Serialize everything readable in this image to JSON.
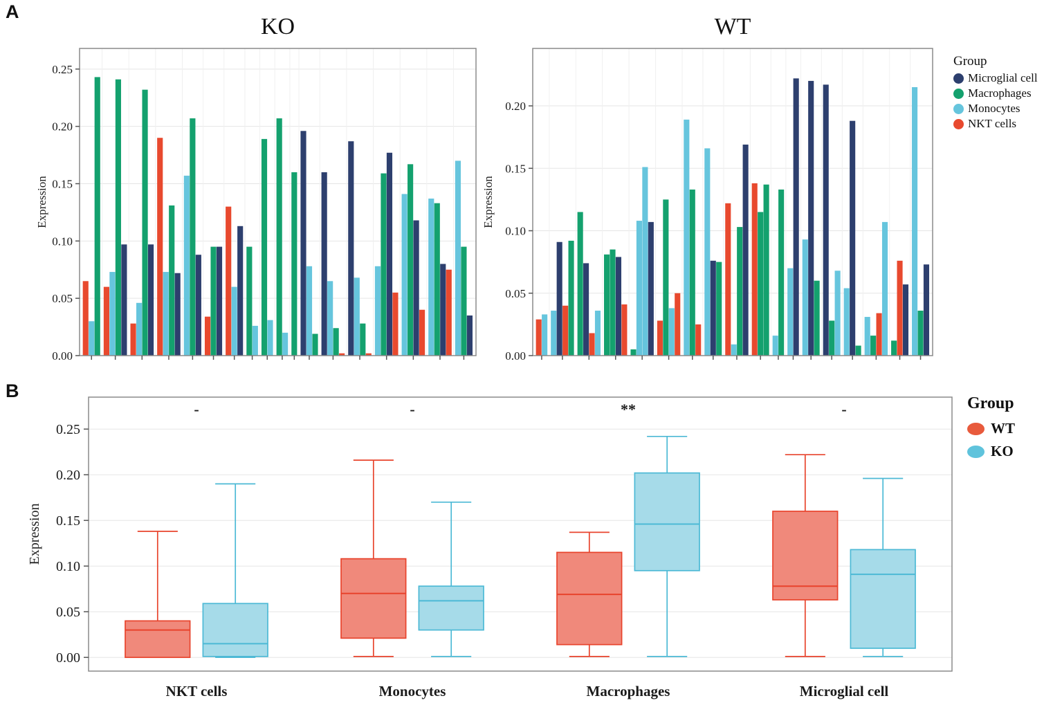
{
  "panel_a": {
    "label": "A",
    "ko_title": "KO",
    "wt_title": "WT",
    "legend": {
      "title": "Group",
      "items": [
        {
          "label": "Microglial cell",
          "color": "#2d3f6e"
        },
        {
          "label": "Macrophages",
          "color": "#14a16e"
        },
        {
          "label": "Monocytes",
          "color": "#66c5dd"
        },
        {
          "label": "NKT cells",
          "color": "#e8492e"
        }
      ]
    }
  },
  "panel_b": {
    "label": "B",
    "legend": {
      "title": "Group",
      "items": [
        {
          "label": "WT",
          "color": "#e85a3c"
        },
        {
          "label": "KO",
          "color": "#5fc3dc"
        }
      ]
    }
  },
  "chart_data": [
    {
      "type": "bar",
      "title": "KO",
      "ylabel": "Expression",
      "ylim": [
        0,
        0.268
      ],
      "yticks": [
        0,
        0.05,
        0.1,
        0.15,
        0.2,
        0.25
      ],
      "grid": true,
      "legend_position": "right",
      "colors": {
        "microglial": "#2d3f6e",
        "macrophage": "#14a16e",
        "monocyte": "#66c5dd",
        "nkt": "#e8492e"
      },
      "clusters": [
        [
          {
            "g": "nkt",
            "v": 0.065
          },
          {
            "g": "monocyte",
            "v": 0.03
          },
          {
            "g": "macrophage",
            "v": 0.243
          }
        ],
        [
          {
            "g": "nkt",
            "v": 0.06
          },
          {
            "g": "monocyte",
            "v": 0.073
          },
          {
            "g": "macrophage",
            "v": 0.241
          },
          {
            "g": "microglial",
            "v": 0.097
          }
        ],
        [
          {
            "g": "nkt",
            "v": 0.028
          },
          {
            "g": "monocyte",
            "v": 0.046
          },
          {
            "g": "macrophage",
            "v": 0.232
          },
          {
            "g": "microglial",
            "v": 0.097
          }
        ],
        [
          {
            "g": "nkt",
            "v": 0.19
          },
          {
            "g": "monocyte",
            "v": 0.073
          },
          {
            "g": "macrophage",
            "v": 0.131
          },
          {
            "g": "microglial",
            "v": 0.072
          }
        ],
        [
          {
            "g": "monocyte",
            "v": 0.157
          },
          {
            "g": "macrophage",
            "v": 0.207
          },
          {
            "g": "microglial",
            "v": 0.088
          }
        ],
        [
          {
            "g": "nkt",
            "v": 0.034
          },
          {
            "g": "macrophage",
            "v": 0.095
          },
          {
            "g": "microglial",
            "v": 0.095
          }
        ],
        [
          {
            "g": "nkt",
            "v": 0.13
          },
          {
            "g": "monocyte",
            "v": 0.06
          },
          {
            "g": "microglial",
            "v": 0.113
          }
        ],
        [
          {
            "g": "macrophage",
            "v": 0.095
          },
          {
            "g": "monocyte",
            "v": 0.026
          }
        ],
        [
          {
            "g": "macrophage",
            "v": 0.189
          },
          {
            "g": "monocyte",
            "v": 0.031
          }
        ],
        [
          {
            "g": "macrophage",
            "v": 0.207
          },
          {
            "g": "monocyte",
            "v": 0.02
          }
        ],
        [
          {
            "g": "macrophage",
            "v": 0.16
          }
        ],
        [
          {
            "g": "microglial",
            "v": 0.196
          },
          {
            "g": "monocyte",
            "v": 0.078
          },
          {
            "g": "macrophage",
            "v": 0.019
          }
        ],
        [
          {
            "g": "microglial",
            "v": 0.16
          },
          {
            "g": "monocyte",
            "v": 0.065
          },
          {
            "g": "macrophage",
            "v": 0.024
          },
          {
            "g": "nkt",
            "v": 0.002
          }
        ],
        [
          {
            "g": "microglial",
            "v": 0.187
          },
          {
            "g": "monocyte",
            "v": 0.068
          },
          {
            "g": "macrophage",
            "v": 0.028
          },
          {
            "g": "nkt",
            "v": 0.002
          }
        ],
        [
          {
            "g": "monocyte",
            "v": 0.078
          },
          {
            "g": "macrophage",
            "v": 0.159
          },
          {
            "g": "microglial",
            "v": 0.177
          },
          {
            "g": "nkt",
            "v": 0.055
          }
        ],
        [
          {
            "g": "monocyte",
            "v": 0.141
          },
          {
            "g": "macrophage",
            "v": 0.167
          },
          {
            "g": "microglial",
            "v": 0.118
          },
          {
            "g": "nkt",
            "v": 0.04
          }
        ],
        [
          {
            "g": "monocyte",
            "v": 0.137
          },
          {
            "g": "macrophage",
            "v": 0.133
          },
          {
            "g": "microglial",
            "v": 0.08
          },
          {
            "g": "nkt",
            "v": 0.075
          }
        ],
        [
          {
            "g": "monocyte",
            "v": 0.17
          },
          {
            "g": "macrophage",
            "v": 0.095
          },
          {
            "g": "microglial",
            "v": 0.035
          }
        ]
      ]
    },
    {
      "type": "bar",
      "title": "WT",
      "ylabel": "Expression",
      "ylim": [
        0,
        0.246
      ],
      "yticks": [
        0,
        0.05,
        0.1,
        0.15,
        0.2
      ],
      "grid": true,
      "legend_position": "right",
      "colors": {
        "microglial": "#2d3f6e",
        "macrophage": "#14a16e",
        "monocyte": "#66c5dd",
        "nkt": "#e8492e"
      },
      "clusters": [
        [
          {
            "g": "nkt",
            "v": 0.029
          },
          {
            "g": "monocyte",
            "v": 0.033
          }
        ],
        [
          {
            "g": "monocyte",
            "v": 0.036
          },
          {
            "g": "microglial",
            "v": 0.091
          },
          {
            "g": "nkt",
            "v": 0.04
          },
          {
            "g": "macrophage",
            "v": 0.092
          }
        ],
        [
          {
            "g": "macrophage",
            "v": 0.115
          },
          {
            "g": "microglial",
            "v": 0.074
          },
          {
            "g": "nkt",
            "v": 0.018
          },
          {
            "g": "monocyte",
            "v": 0.036
          }
        ],
        [
          {
            "g": "macrophage",
            "v": 0.081
          },
          {
            "g": "macrophage",
            "v": 0.085
          },
          {
            "g": "microglial",
            "v": 0.079
          },
          {
            "g": "nkt",
            "v": 0.041
          }
        ],
        [
          {
            "g": "macrophage",
            "v": 0.005
          },
          {
            "g": "monocyte",
            "v": 0.108
          },
          {
            "g": "monocyte",
            "v": 0.151
          },
          {
            "g": "microglial",
            "v": 0.107
          }
        ],
        [
          {
            "g": "nkt",
            "v": 0.028
          },
          {
            "g": "macrophage",
            "v": 0.125
          },
          {
            "g": "monocyte",
            "v": 0.038
          },
          {
            "g": "nkt",
            "v": 0.05
          }
        ],
        [
          {
            "g": "monocyte",
            "v": 0.189
          },
          {
            "g": "macrophage",
            "v": 0.133
          },
          {
            "g": "nkt",
            "v": 0.025
          }
        ],
        [
          {
            "g": "monocyte",
            "v": 0.166
          },
          {
            "g": "microglial",
            "v": 0.076
          },
          {
            "g": "macrophage",
            "v": 0.075
          }
        ],
        [
          {
            "g": "nkt",
            "v": 0.122
          },
          {
            "g": "monocyte",
            "v": 0.009
          },
          {
            "g": "macrophage",
            "v": 0.103
          },
          {
            "g": "microglial",
            "v": 0.169
          }
        ],
        [
          {
            "g": "nkt",
            "v": 0.138
          },
          {
            "g": "macrophage",
            "v": 0.115
          },
          {
            "g": "macrophage",
            "v": 0.137
          }
        ],
        [
          {
            "g": "monocyte",
            "v": 0.016
          },
          {
            "g": "macrophage",
            "v": 0.133
          }
        ],
        [
          {
            "g": "monocyte",
            "v": 0.07
          },
          {
            "g": "microglial",
            "v": 0.222
          }
        ],
        [
          {
            "g": "monocyte",
            "v": 0.093
          },
          {
            "g": "microglial",
            "v": 0.22
          },
          {
            "g": "macrophage",
            "v": 0.06
          }
        ],
        [
          {
            "g": "microglial",
            "v": 0.217
          },
          {
            "g": "macrophage",
            "v": 0.028
          },
          {
            "g": "monocyte",
            "v": 0.068
          }
        ],
        [
          {
            "g": "monocyte",
            "v": 0.054
          },
          {
            "g": "microglial",
            "v": 0.188
          },
          {
            "g": "macrophage",
            "v": 0.008
          }
        ],
        [
          {
            "g": "monocyte",
            "v": 0.031
          },
          {
            "g": "macrophage",
            "v": 0.016
          },
          {
            "g": "nkt",
            "v": 0.034
          },
          {
            "g": "monocyte",
            "v": 0.107
          }
        ],
        [
          {
            "g": "macrophage",
            "v": 0.012
          },
          {
            "g": "nkt",
            "v": 0.076
          },
          {
            "g": "microglial",
            "v": 0.057
          }
        ],
        [
          {
            "g": "monocyte",
            "v": 0.215
          },
          {
            "g": "macrophage",
            "v": 0.036
          },
          {
            "g": "microglial",
            "v": 0.073
          }
        ]
      ]
    },
    {
      "type": "box",
      "ylabel": "Expression",
      "ylim": [
        -0.015,
        0.285
      ],
      "yticks": [
        0,
        0.05,
        0.1,
        0.15,
        0.2,
        0.25
      ],
      "grid": true,
      "legend_position": "right",
      "categories": [
        "NKT cells",
        "Monocytes",
        "Macrophages",
        "Microglial cell"
      ],
      "significance": [
        "-",
        "-",
        "**",
        "-"
      ],
      "significance_y": 0.272,
      "groups": [
        "WT",
        "KO"
      ],
      "group_styles": {
        "WT": {
          "fill": "#f0897b",
          "stroke": "#e8432c"
        },
        "KO": {
          "fill": "#a6dbe9",
          "stroke": "#4cb9d5"
        }
      },
      "boxes": {
        "WT": [
          {
            "whisker_low": 0.0,
            "q1": 0.0,
            "median": 0.03,
            "q3": 0.04,
            "whisker_high": 0.138
          },
          {
            "whisker_low": 0.001,
            "q1": 0.021,
            "median": 0.07,
            "q3": 0.108,
            "whisker_high": 0.216
          },
          {
            "whisker_low": 0.001,
            "q1": 0.014,
            "median": 0.069,
            "q3": 0.115,
            "whisker_high": 0.137
          },
          {
            "whisker_low": 0.001,
            "q1": 0.063,
            "median": 0.078,
            "q3": 0.16,
            "whisker_high": 0.222
          }
        ],
        "KO": [
          {
            "whisker_low": 0.0,
            "q1": 0.001,
            "median": 0.015,
            "q3": 0.059,
            "whisker_high": 0.19
          },
          {
            "whisker_low": 0.001,
            "q1": 0.03,
            "median": 0.062,
            "q3": 0.078,
            "whisker_high": 0.17
          },
          {
            "whisker_low": 0.001,
            "q1": 0.095,
            "median": 0.146,
            "q3": 0.202,
            "whisker_high": 0.242
          },
          {
            "whisker_low": 0.001,
            "q1": 0.01,
            "median": 0.091,
            "q3": 0.118,
            "whisker_high": 0.196
          }
        ]
      }
    }
  ]
}
